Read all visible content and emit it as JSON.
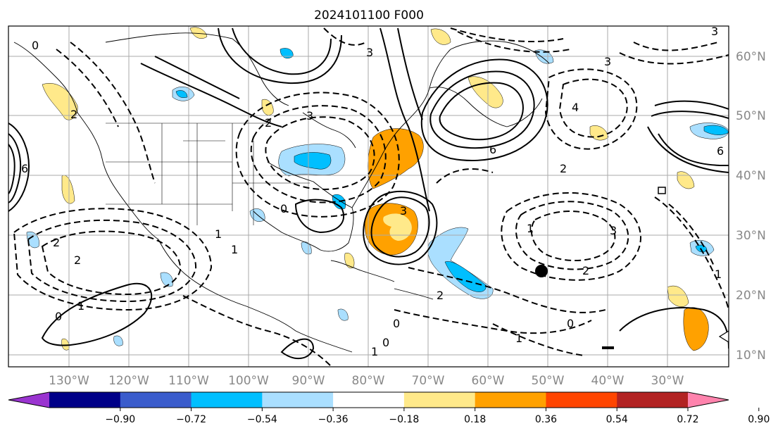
{
  "title": "2024101100 F000",
  "map": {
    "lon_labels": [
      "130°W",
      "120°W",
      "110°W",
      "100°W",
      "90°W",
      "80°W",
      "70°W",
      "60°W",
      "50°W",
      "40°W",
      "30°W"
    ],
    "lat_labels": [
      "60°N",
      "50°N",
      "40°N",
      "30°N",
      "20°N",
      "10°N"
    ],
    "contour_labels": [
      "0",
      "2",
      "3",
      "3",
      "3",
      "3",
      "6",
      "1",
      "4",
      "2",
      "2",
      "1",
      "0",
      "2",
      "3",
      "1",
      "2",
      "2",
      "1",
      "0",
      "0",
      "3",
      "6",
      "2",
      "1",
      "1",
      "0",
      "6",
      "0",
      "1"
    ]
  },
  "colorbar": {
    "ticks": [
      "−0.90",
      "−0.72",
      "−0.54",
      "−0.36",
      "−0.18",
      "0.18",
      "0.36",
      "0.54",
      "0.72",
      "0.90"
    ],
    "colors": [
      "#9a34d0",
      "#000088",
      "#3a5ccc",
      "#00bfff",
      "#aadfff",
      "#ffffff",
      "#ffe98a",
      "#ffa100",
      "#ff4500",
      "#b22222",
      "#ff83ad"
    ]
  }
}
